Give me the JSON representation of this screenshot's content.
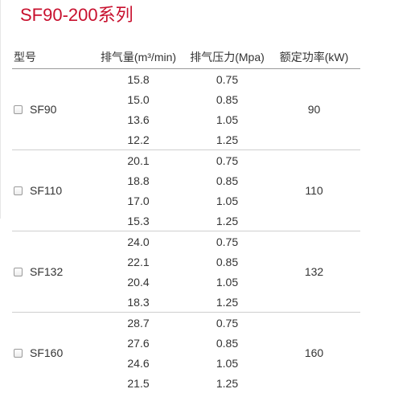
{
  "title": "SF90-200系列",
  "headers": {
    "model": "型号",
    "air_volume": "排气量(m³/min)",
    "pressure": "排气压力(Mpa)",
    "power": "额定功率(kW)"
  },
  "groups": [
    {
      "model": "SF90",
      "power": "90",
      "rows": [
        {
          "air": "15.8",
          "pressure": "0.75"
        },
        {
          "air": "15.0",
          "pressure": "0.85"
        },
        {
          "air": "13.6",
          "pressure": "1.05"
        },
        {
          "air": "12.2",
          "pressure": "1.25"
        }
      ]
    },
    {
      "model": "SF110",
      "power": "110",
      "rows": [
        {
          "air": "20.1",
          "pressure": "0.75"
        },
        {
          "air": "18.8",
          "pressure": "0.85"
        },
        {
          "air": "17.0",
          "pressure": "1.05"
        },
        {
          "air": "15.3",
          "pressure": "1.25"
        }
      ]
    },
    {
      "model": "SF132",
      "power": "132",
      "rows": [
        {
          "air": "24.0",
          "pressure": "0.75"
        },
        {
          "air": "22.1",
          "pressure": "0.85"
        },
        {
          "air": "20.4",
          "pressure": "1.05"
        },
        {
          "air": "18.3",
          "pressure": "1.25"
        }
      ]
    },
    {
      "model": "SF160",
      "power": "160",
      "rows": [
        {
          "air": "28.7",
          "pressure": "0.75"
        },
        {
          "air": "27.6",
          "pressure": "0.85"
        },
        {
          "air": "24.6",
          "pressure": "1.05"
        },
        {
          "air": "21.5",
          "pressure": "1.25"
        }
      ]
    }
  ]
}
